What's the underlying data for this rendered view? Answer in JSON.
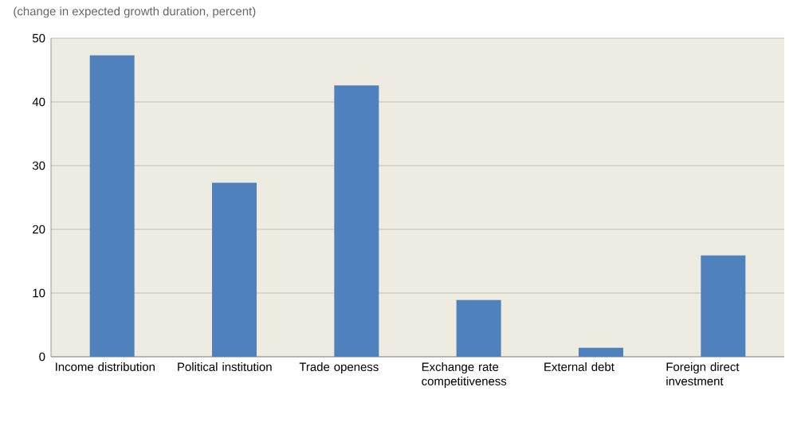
{
  "chart_data": {
    "type": "bar",
    "title": "(change in expected growth duration, percent)",
    "categories": [
      "Income distribution",
      "Political institution",
      "Trade openess",
      "Exchange rate competitiveness",
      "External debt",
      "Foreign direct investment"
    ],
    "values": [
      47.3,
      27.3,
      42.6,
      8.9,
      1.4,
      15.9
    ],
    "color": "#4f81bd",
    "ylim": [
      0,
      50
    ],
    "yticks": [
      0,
      10,
      20,
      30,
      40,
      50
    ],
    "grid": "y"
  }
}
